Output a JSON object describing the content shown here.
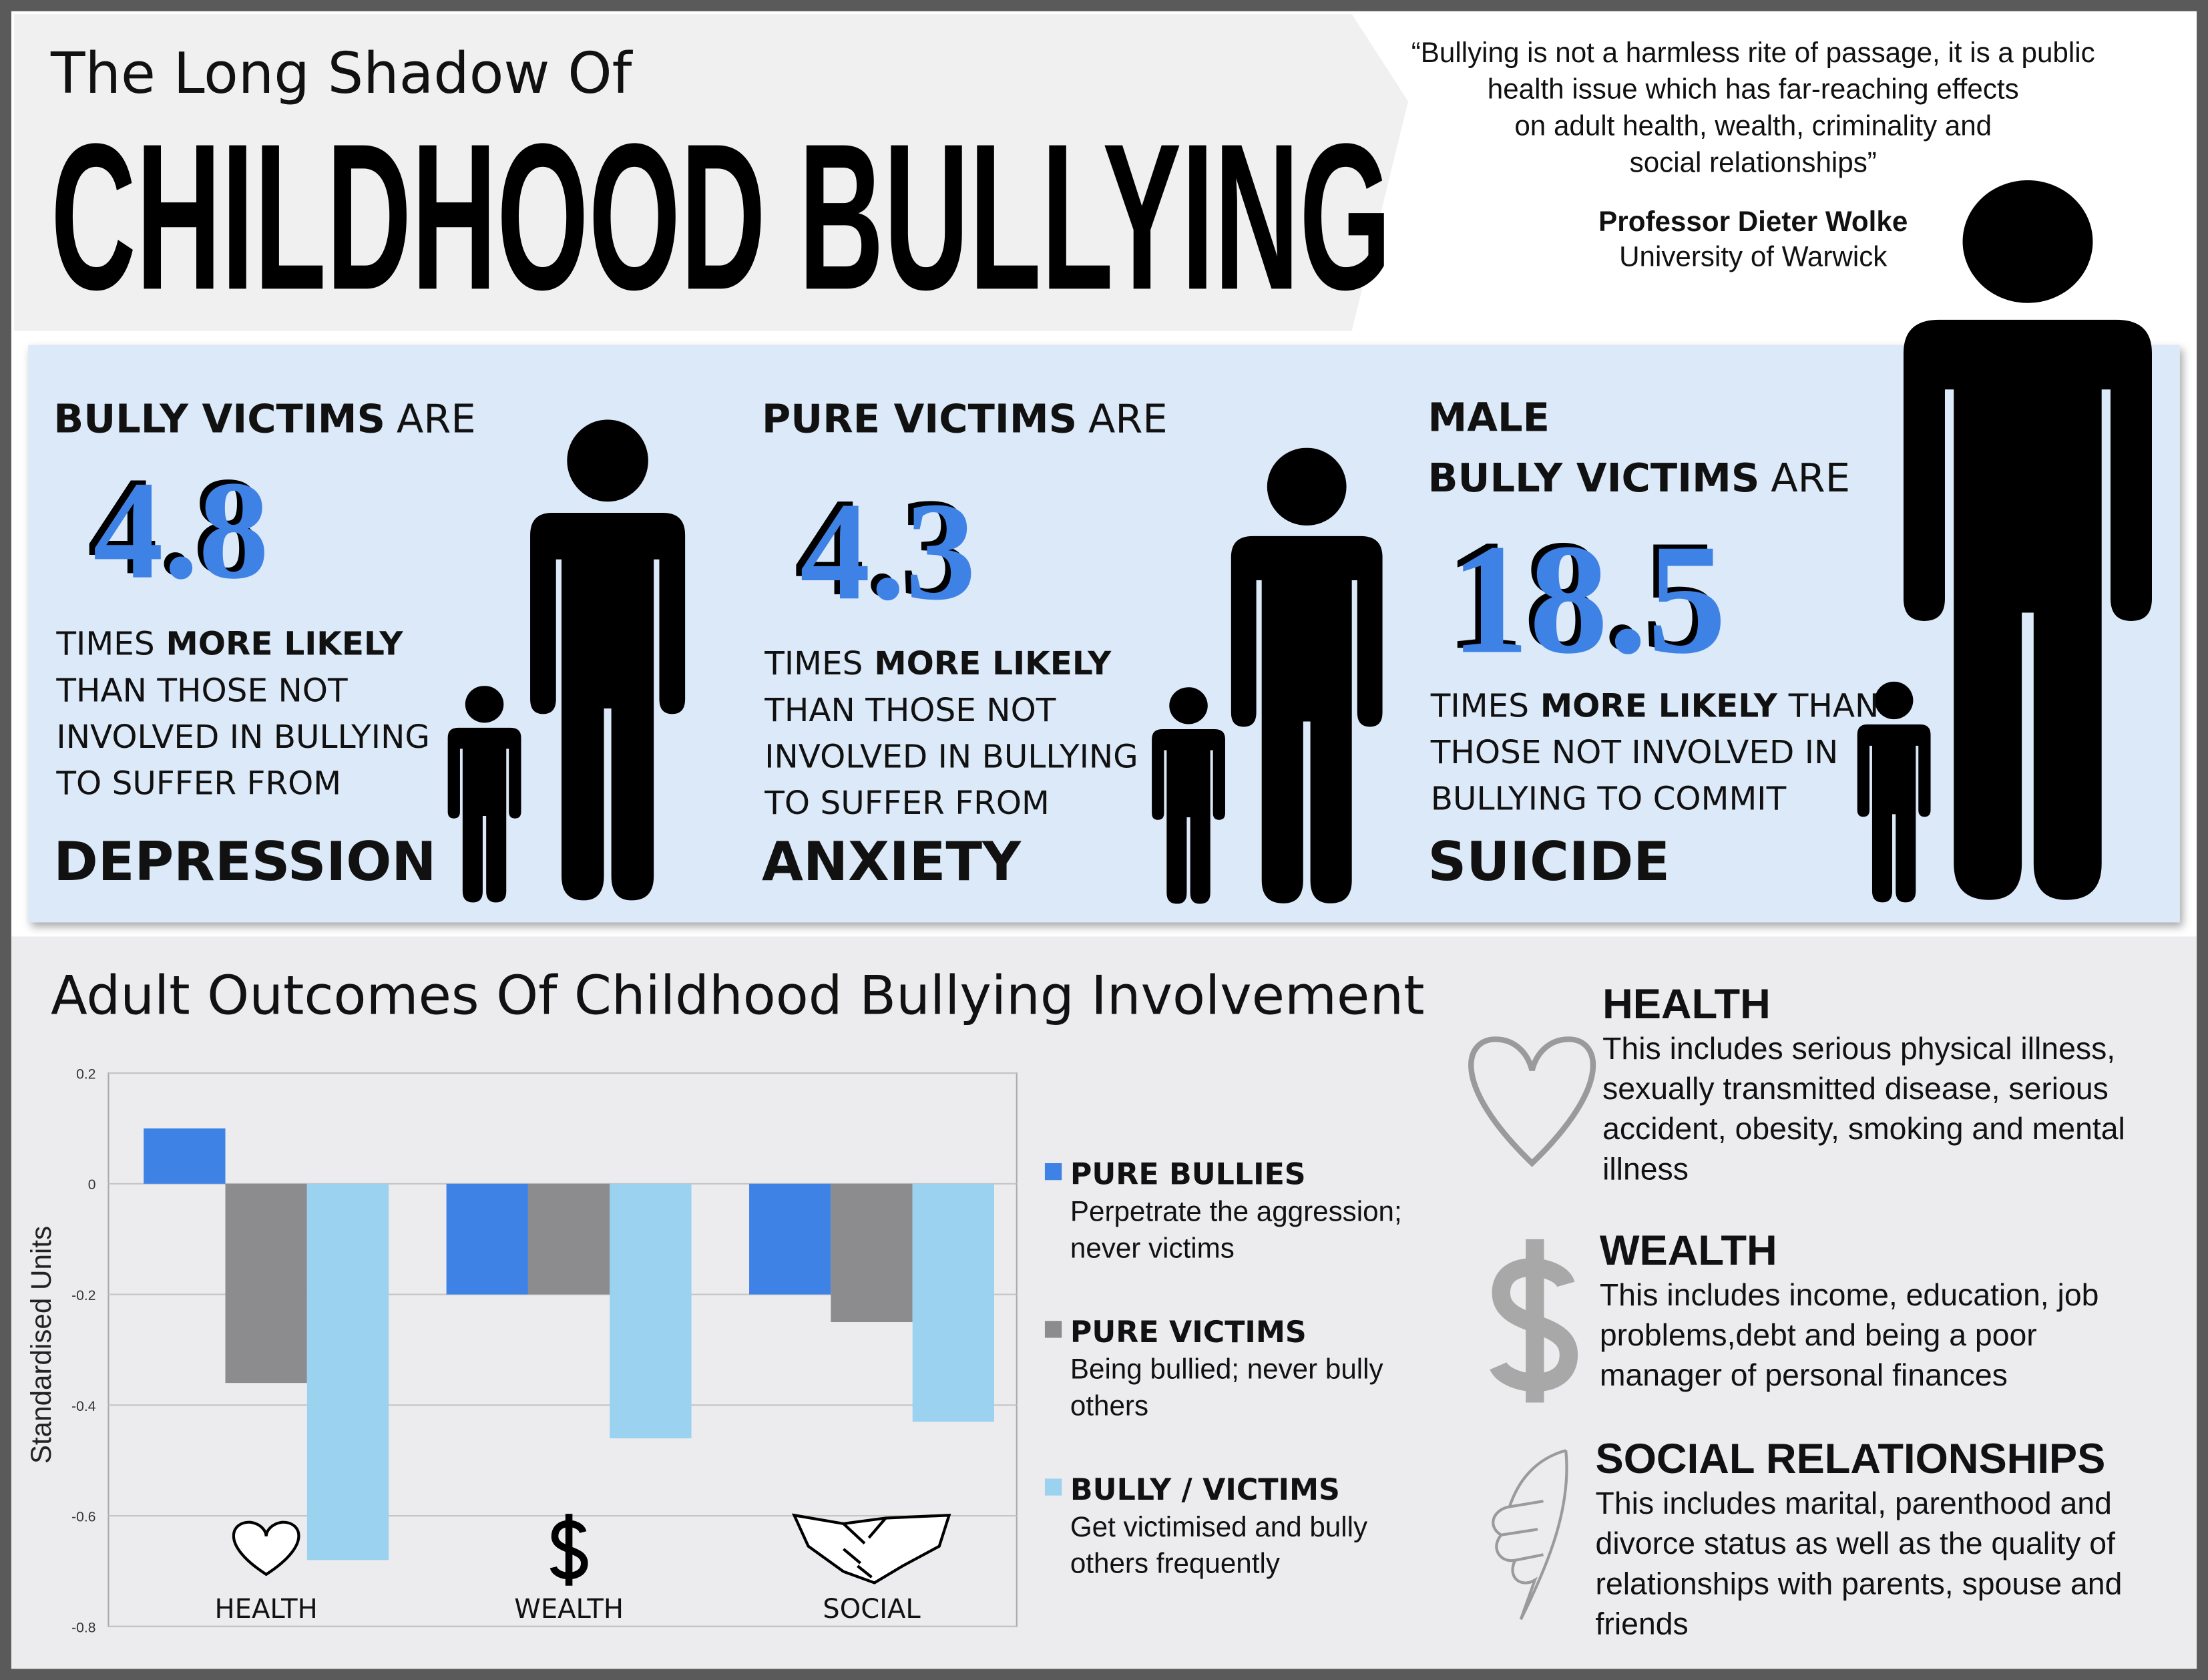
{
  "header": {
    "subtitle": "The Long Shadow Of",
    "title": "CHILDHOOD BULLYING"
  },
  "quote": {
    "lines": [
      "“Bullying is not a harmless rite of passage, it is a public",
      "health issue which has far-reaching effects",
      "on adult health, wealth, criminality and",
      "social relationships”"
    ],
    "author": "Professor Dieter Wolke",
    "affiliation": "University of Warwick"
  },
  "stats": [
    {
      "lead": [
        [
          "BULLY VICTIMS",
          "ARE"
        ]
      ],
      "value": 4.8,
      "desc": [
        [
          "TIMES",
          "MORE LIKELY"
        ],
        [
          "THAN THOSE NOT"
        ],
        [
          "INVOLVED IN BULLYING"
        ],
        [
          "TO SUFFER FROM"
        ]
      ],
      "outcome": "DEPRESSION"
    },
    {
      "lead": [
        [
          "PURE VICTIMS",
          "ARE"
        ]
      ],
      "value": 4.3,
      "desc": [
        [
          "TIMES",
          "MORE LIKELY"
        ],
        [
          "THAN THOSE NOT"
        ],
        [
          "INVOLVED IN BULLYING"
        ],
        [
          "TO SUFFER FROM"
        ]
      ],
      "outcome": "ANXIETY"
    },
    {
      "lead": [
        [
          "MALE"
        ],
        [
          "BULLY VICTIMS",
          "ARE"
        ]
      ],
      "value": 18.5,
      "desc": [
        [
          "TIMES",
          "MORE LIKELY",
          "THAN"
        ],
        [
          "THOSE NOT INVOLVED IN"
        ],
        [
          "BULLYING TO COMMIT"
        ]
      ],
      "outcome": "SUICIDE"
    }
  ],
  "chart_data": {
    "type": "bar",
    "title": "Adult Outcomes Of Childhood Bullying Involvement",
    "y_label": "Standardised Units",
    "categories": [
      "HEALTH",
      "WEALTH",
      "SOCIAL"
    ],
    "series": [
      {
        "name": "PURE BULLIES",
        "color": "#3f82e6",
        "values": [
          0.1,
          -0.2,
          -0.2
        ],
        "description": [
          "Perpetrate the aggression;",
          "never victims"
        ]
      },
      {
        "name": "PURE VICTIMS",
        "color": "#8c8c8e",
        "values": [
          -0.36,
          -0.2,
          -0.25
        ],
        "description": [
          "Being bullied; never bully",
          "others"
        ]
      },
      {
        "name": "BULLY / VICTIMS",
        "color": "#9ad2ef",
        "values": [
          -0.68,
          -0.46,
          -0.43
        ],
        "description": [
          "Get victimised and bully",
          "others frequently"
        ]
      }
    ],
    "ylim": [
      -0.8,
      0.2
    ],
    "yticks": [
      0.2,
      0,
      -0.2,
      -0.4,
      -0.6,
      -0.8
    ],
    "grid": true
  },
  "outcomes": [
    {
      "title": "HEALTH",
      "lines": [
        "This includes serious physical illness,",
        "sexually transmitted disease, serious",
        "accident, obesity, smoking and mental",
        "illness"
      ]
    },
    {
      "title": "WEALTH",
      "lines": [
        "This includes income, education, job",
        "problems,debt and being a poor",
        "manager of personal finances"
      ]
    },
    {
      "title": "SOCIAL RELATIONSHIPS",
      "lines": [
        "This includes marital, parenthood and",
        "divorce status as well as the quality of",
        "relationships with parents, spouse and",
        "friends"
      ]
    }
  ]
}
